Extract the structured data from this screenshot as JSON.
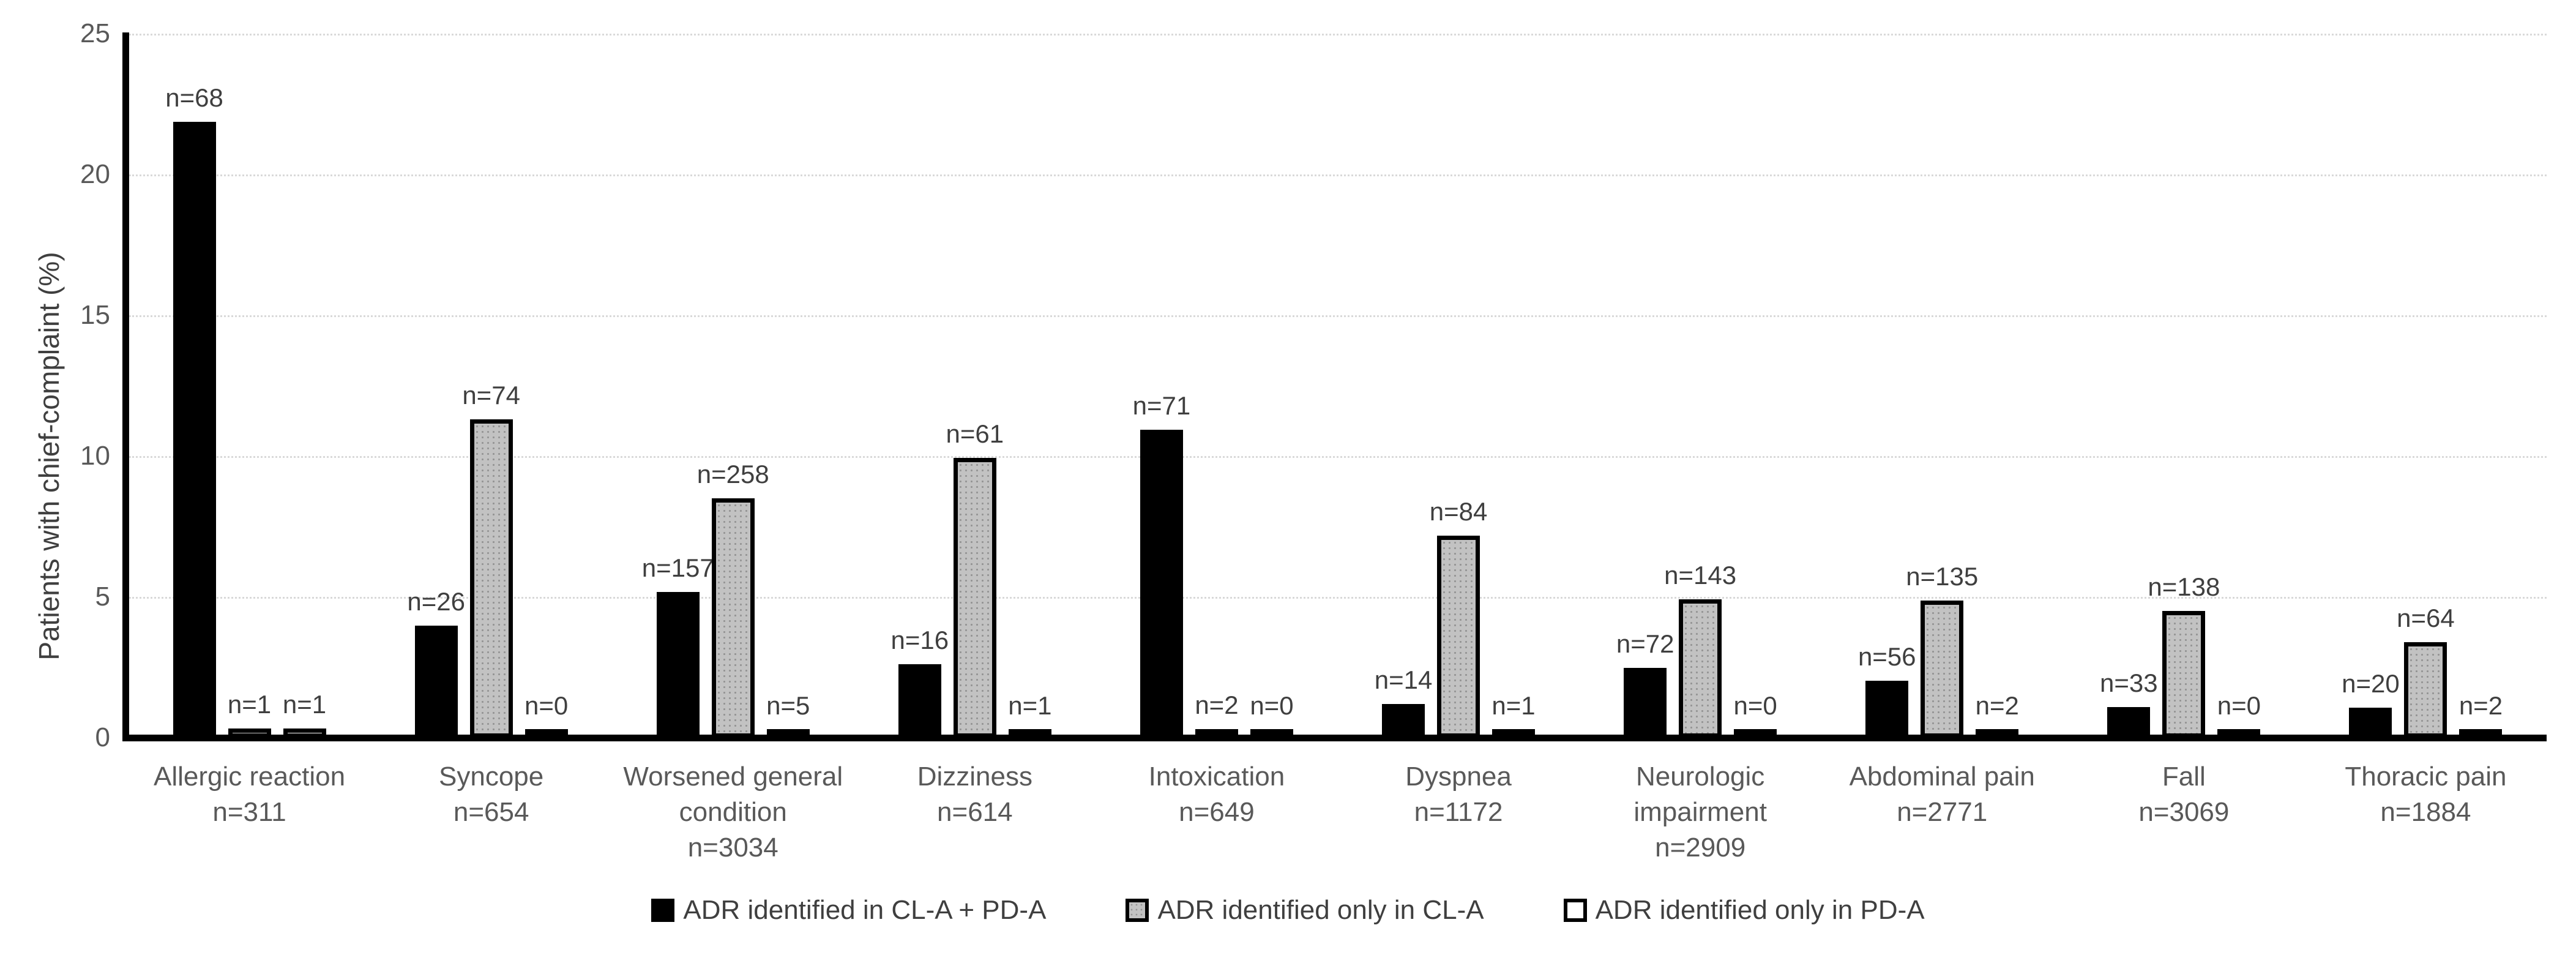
{
  "chart_data": {
    "type": "bar",
    "title": "",
    "ylabel": "Patients with chief-complaint (%)",
    "xlabel": "",
    "ylim": [
      0,
      25
    ],
    "yticks": [
      0,
      5,
      10,
      15,
      20,
      25
    ],
    "grid": "horizontal-dotted",
    "legend_position": "bottom",
    "bar_value_label_format": "n=<count>",
    "categories": [
      {
        "label": "Allergic reaction",
        "n_label": "n=311"
      },
      {
        "label": "Syncope",
        "n_label": "n=654"
      },
      {
        "label": "Worsened general condition",
        "n_label": "n=3034"
      },
      {
        "label": "Dizziness",
        "n_label": "n=614"
      },
      {
        "label": "Intoxication",
        "n_label": "n=649"
      },
      {
        "label": "Dyspnea",
        "n_label": "n=1172"
      },
      {
        "label": "Neurologic impairment",
        "n_label": "n=2909"
      },
      {
        "label": "Abdominal pain",
        "n_label": "n=2771"
      },
      {
        "label": "Fall",
        "n_label": "n=3069"
      },
      {
        "label": "Thoracic pain",
        "n_label": "n=1884"
      }
    ],
    "series": [
      {
        "name": "ADR identified in CL-A + PD-A",
        "color": "#000000",
        "counts": [
          68,
          26,
          157,
          16,
          71,
          14,
          72,
          56,
          33,
          20
        ],
        "count_labels": [
          "n=68",
          "n=26",
          "n=157",
          "n=16",
          "n=71",
          "n=14",
          "n=72",
          "n=56",
          "n=33",
          "n=20"
        ],
        "percent": [
          21.86,
          3.98,
          5.17,
          2.61,
          10.94,
          1.19,
          2.48,
          2.02,
          1.08,
          1.06
        ]
      },
      {
        "name": "ADR identified only in CL-A",
        "color": "#c2c2c2",
        "counts": [
          1,
          74,
          258,
          61,
          2,
          84,
          143,
          135,
          138,
          64
        ],
        "count_labels": [
          "n=1",
          "n=74",
          "n=258",
          "n=61",
          "n=2",
          "n=84",
          "n=143",
          "n=135",
          "n=138",
          "n=64"
        ],
        "percent": [
          0.32,
          11.31,
          8.5,
          9.93,
          0.31,
          7.17,
          4.92,
          4.87,
          4.5,
          3.4
        ]
      },
      {
        "name": "ADR identified only in PD-A",
        "color": "#ffffff",
        "counts": [
          1,
          0,
          5,
          1,
          0,
          1,
          0,
          2,
          0,
          2
        ],
        "count_labels": [
          "n=1",
          "n=0",
          "n=5",
          "n=1",
          "n=0",
          "n=1",
          "n=0",
          "n=2",
          "n=0",
          "n=2"
        ],
        "percent": [
          0.32,
          0.0,
          0.16,
          0.16,
          0.0,
          0.09,
          0.0,
          0.07,
          0.0,
          0.11
        ]
      }
    ],
    "colors": {
      "bar_black": "#000000",
      "bar_gray": "#c2c2c2",
      "bar_white": "#ffffff",
      "bar_outline": "#000000",
      "gridline": "#d9d9d9",
      "axis_line": "#000000",
      "tick_text": "#595959",
      "label_text": "#3f3f3f"
    }
  },
  "legend": {
    "items": [
      {
        "label": "ADR identified in CL-A + PD-A",
        "swatch": "black-filled-square"
      },
      {
        "label": "ADR identified only in CL-A",
        "swatch": "gray-dotted-square"
      },
      {
        "label": "ADR identified only in PD-A",
        "swatch": "white-outlined-square"
      }
    ]
  }
}
